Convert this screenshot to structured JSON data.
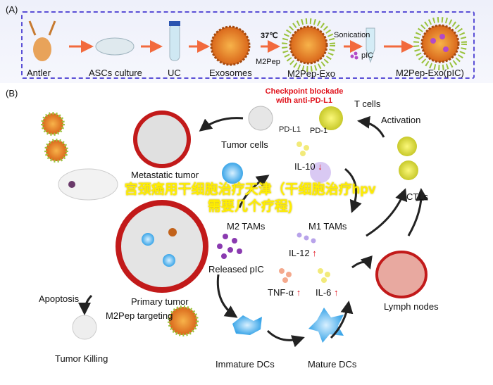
{
  "panel_a": {
    "label": "(A)",
    "steps": [
      "Antler",
      "ASCs culture",
      "UC",
      "Exosomes",
      "M2Pep-Exo",
      "M2Pep-Exo(pIC)"
    ],
    "temperature": "37℃",
    "peptide": "M2Pep",
    "sonication": "Sonication",
    "pic": "pIC"
  },
  "panel_b": {
    "label": "(B)",
    "checkpoint": "Checkpoint blockade with anti-PD-L1",
    "t_cells": "T cells",
    "pd_l1": "PD-L1",
    "pd_1": "PD-1",
    "tumor_cells": "Tumor cells",
    "activation": "Activation",
    "metastatic_tumor": "Metastatic tumor",
    "il10": "IL-10",
    "ctls": "CTLs",
    "m2_tams": "M2 TAMs",
    "m1_tams": "M1 TAMs",
    "il12": "IL-12",
    "released_pic": "Released pIC",
    "tnf": "TNF-α",
    "il6": "IL-6",
    "lymph_nodes": "Lymph nodes",
    "primary_tumor": "Primary tumor",
    "apoptosis": "Apoptosis",
    "m2pep_targeting": "M2Pep targeting",
    "tumor_killing": "Tumor Killing",
    "immature_dcs": "Immature DCs",
    "mature_dcs": "Mature DCs",
    "up_arrow": "↑",
    "down_arrow": "↓"
  },
  "watermark": "宫颈癌用干细胞治疗天津（干细胞治疗hpv需要几个疗程)",
  "colors": {
    "dash_border": "#5a4fd6",
    "arrow_orange": "#f26a3d",
    "red_text": "#e0101a",
    "watermark": "#ffee00"
  }
}
